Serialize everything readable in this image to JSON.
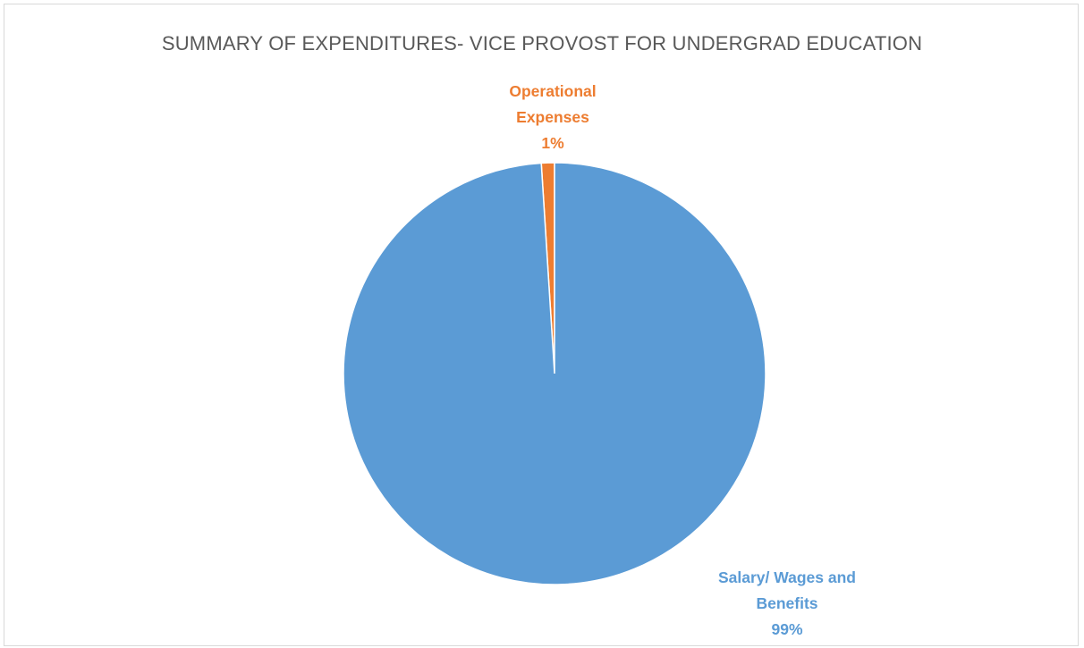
{
  "chart_data": {
    "type": "pie",
    "title": "SUMMARY OF EXPENDITURES- VICE PROVOST FOR  UNDERGRAD EDUCATION",
    "categories": [
      "Operational Expenses",
      "Salary/ Wages and Benefits"
    ],
    "values": [
      1,
      99
    ],
    "colors": [
      "#ed7d31",
      "#5b9bd5"
    ],
    "data_labels": [
      {
        "lines": [
          "Operational",
          "Expenses",
          "1%"
        ]
      },
      {
        "lines": [
          "Salary/ Wages and",
          "Benefits",
          "99%"
        ]
      }
    ],
    "legend": "none"
  }
}
